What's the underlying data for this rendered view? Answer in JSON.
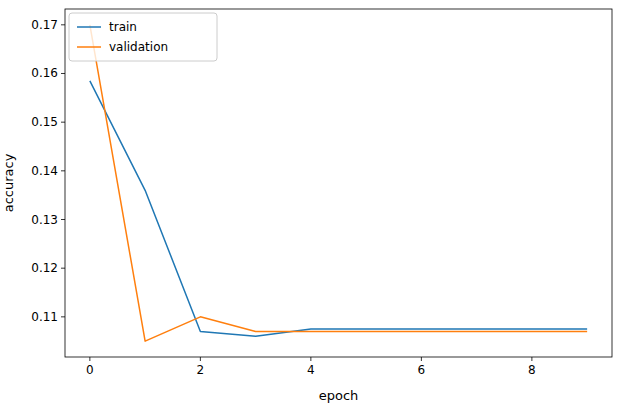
{
  "chart_data": {
    "type": "line",
    "x_label": "epoch",
    "y_label": "accuracy",
    "x": [
      0,
      1,
      2,
      3,
      4,
      5,
      6,
      7,
      8,
      9
    ],
    "series": [
      {
        "name": "train",
        "color": "#1f77b4",
        "values": [
          0.1585,
          0.136,
          0.107,
          0.106,
          0.1075,
          0.1075,
          0.1075,
          0.1075,
          0.1075,
          0.1075
        ]
      },
      {
        "name": "validation",
        "color": "#ff7f0e",
        "values": [
          0.17,
          0.105,
          0.11,
          0.107,
          0.107,
          0.107,
          0.107,
          0.107,
          0.107,
          0.107
        ]
      }
    ],
    "xlim": [
      -0.45,
      9.45
    ],
    "xticks": [
      0,
      2,
      4,
      6,
      8
    ],
    "ylim": [
      0.10175,
      0.17325
    ],
    "yticks": [
      0.11,
      0.12,
      0.13,
      0.14,
      0.15,
      0.16,
      0.17
    ],
    "grid": false,
    "legend": "upper left"
  }
}
